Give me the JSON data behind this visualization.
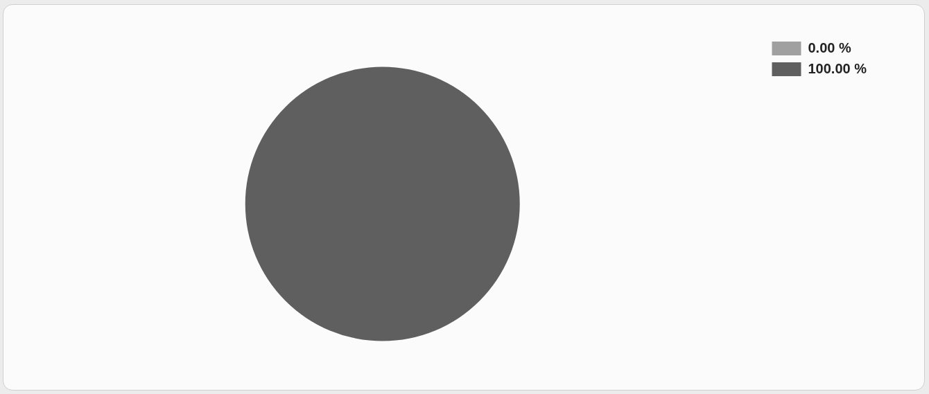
{
  "chart_data": {
    "type": "pie",
    "categories": [
      "0.00 %",
      "100.00 %"
    ],
    "values": [
      0,
      100
    ],
    "colors": [
      "#a0a0a0",
      "#5f5f5f"
    ],
    "legend": "top right"
  }
}
